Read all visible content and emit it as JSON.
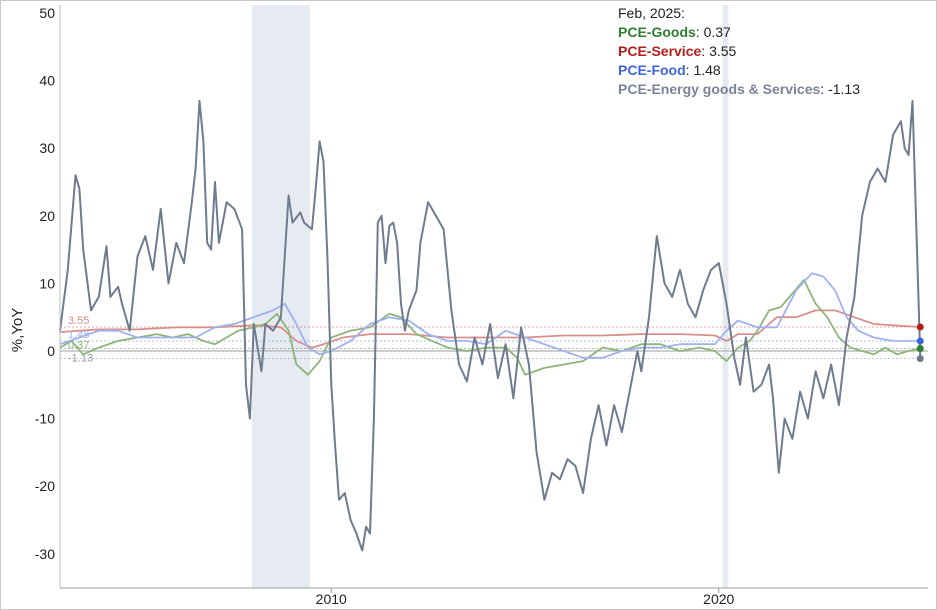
{
  "chart_data": {
    "type": "line",
    "ylabel": "%,YoY",
    "ylim": [
      -35,
      50
    ],
    "xlim": [
      2003.0,
      2025.4
    ],
    "y_ticks": [
      "50",
      "40",
      "30",
      "20",
      "10",
      "0",
      "-10",
      "-20",
      "-30"
    ],
    "y_tick_values": [
      50,
      40,
      30,
      20,
      10,
      0,
      -10,
      -20,
      -30
    ],
    "x_ticks": [
      "2010",
      "2020"
    ],
    "x_tick_values": [
      2010,
      2020
    ],
    "recessions": [
      [
        2007.95,
        2009.45
      ],
      [
        2020.1,
        2020.25
      ]
    ],
    "legend": {
      "date": "Feb, 2025:",
      "items": [
        {
          "name": "PCE-Goods",
          "sep": ": ",
          "value": "0.37",
          "color": "#2e7d32"
        },
        {
          "name": "PCE-Service",
          "sep": ": ",
          "value": "3.55",
          "color": "#b71c1c"
        },
        {
          "name": "PCE-Food",
          "sep": ": ",
          "value": "1.48",
          "color": "#3f64d8"
        },
        {
          "name": "PCE-Energy goods & Services",
          "sep": ": ",
          "value": "-1.13",
          "color": "#7a8599"
        }
      ]
    },
    "end_labels": [
      "3.55",
      "1.48",
      "0.37",
      "-1.13"
    ],
    "series": [
      {
        "name": "PCE-Goods",
        "color": "#8db57a",
        "dot": "#2e7d32",
        "end": 0.37,
        "points": [
          [
            2003.0,
            0.5
          ],
          [
            2003.3,
            1.5
          ],
          [
            2003.6,
            -0.5
          ],
          [
            2004.0,
            0.5
          ],
          [
            2004.5,
            1.5
          ],
          [
            2005.0,
            2.0
          ],
          [
            2005.5,
            2.5
          ],
          [
            2005.9,
            2.0
          ],
          [
            2006.3,
            2.5
          ],
          [
            2006.7,
            1.5
          ],
          [
            2007.0,
            1.0
          ],
          [
            2007.3,
            2.0
          ],
          [
            2007.6,
            3.0
          ],
          [
            2008.0,
            3.5
          ],
          [
            2008.3,
            4.0
          ],
          [
            2008.6,
            5.5
          ],
          [
            2008.9,
            3.0
          ],
          [
            2009.1,
            -2.0
          ],
          [
            2009.4,
            -3.5
          ],
          [
            2009.7,
            -1.5
          ],
          [
            2010.0,
            2.0
          ],
          [
            2010.5,
            3.0
          ],
          [
            2011.0,
            3.5
          ],
          [
            2011.5,
            5.5
          ],
          [
            2011.8,
            5.0
          ],
          [
            2012.2,
            2.5
          ],
          [
            2012.6,
            1.5
          ],
          [
            2013.0,
            0.5
          ],
          [
            2013.5,
            0.0
          ],
          [
            2014.0,
            0.5
          ],
          [
            2014.5,
            0.5
          ],
          [
            2014.8,
            -1.0
          ],
          [
            2015.0,
            -3.5
          ],
          [
            2015.5,
            -2.5
          ],
          [
            2016.0,
            -2.0
          ],
          [
            2016.5,
            -1.5
          ],
          [
            2017.0,
            0.5
          ],
          [
            2017.5,
            0.0
          ],
          [
            2018.0,
            1.0
          ],
          [
            2018.5,
            1.0
          ],
          [
            2019.0,
            0.0
          ],
          [
            2019.5,
            0.5
          ],
          [
            2019.9,
            0.0
          ],
          [
            2020.2,
            -1.5
          ],
          [
            2020.5,
            0.5
          ],
          [
            2020.8,
            1.5
          ],
          [
            2021.0,
            3.0
          ],
          [
            2021.3,
            6.0
          ],
          [
            2021.6,
            6.5
          ],
          [
            2021.9,
            8.5
          ],
          [
            2022.2,
            10.5
          ],
          [
            2022.5,
            7.0
          ],
          [
            2022.8,
            5.0
          ],
          [
            2023.1,
            2.0
          ],
          [
            2023.4,
            0.5
          ],
          [
            2023.7,
            0.0
          ],
          [
            2024.0,
            -0.5
          ],
          [
            2024.3,
            0.5
          ],
          [
            2024.6,
            -0.5
          ],
          [
            2024.9,
            0.0
          ],
          [
            2025.2,
            0.37
          ]
        ]
      },
      {
        "name": "PCE-Service",
        "color": "#d98f8a",
        "dot": "#b71c1c",
        "end": 3.55,
        "points": [
          [
            2003.0,
            2.8
          ],
          [
            2003.5,
            3.0
          ],
          [
            2004.0,
            3.2
          ],
          [
            2005.0,
            3.2
          ],
          [
            2006.0,
            3.5
          ],
          [
            2007.0,
            3.5
          ],
          [
            2008.0,
            3.8
          ],
          [
            2008.7,
            3.5
          ],
          [
            2009.1,
            1.5
          ],
          [
            2009.5,
            0.5
          ],
          [
            2009.8,
            1.0
          ],
          [
            2010.3,
            2.0
          ],
          [
            2011.0,
            2.5
          ],
          [
            2012.0,
            2.5
          ],
          [
            2013.0,
            2.0
          ],
          [
            2014.0,
            2.0
          ],
          [
            2015.0,
            2.0
          ],
          [
            2016.0,
            2.3
          ],
          [
            2017.0,
            2.3
          ],
          [
            2018.0,
            2.5
          ],
          [
            2019.0,
            2.5
          ],
          [
            2019.9,
            2.3
          ],
          [
            2020.2,
            1.5
          ],
          [
            2020.5,
            2.5
          ],
          [
            2021.0,
            2.5
          ],
          [
            2021.5,
            5.0
          ],
          [
            2022.0,
            5.0
          ],
          [
            2022.5,
            6.0
          ],
          [
            2023.0,
            6.0
          ],
          [
            2023.5,
            5.0
          ],
          [
            2024.0,
            4.0
          ],
          [
            2024.5,
            3.8
          ],
          [
            2025.2,
            3.55
          ]
        ]
      },
      {
        "name": "PCE-Food",
        "color": "#9fb2ef",
        "dot": "#3f64d8",
        "end": 1.48,
        "points": [
          [
            2003.0,
            1.0
          ],
          [
            2003.5,
            2.0
          ],
          [
            2004.0,
            3.0
          ],
          [
            2004.5,
            3.0
          ],
          [
            2005.0,
            2.0
          ],
          [
            2005.5,
            2.0
          ],
          [
            2006.0,
            2.0
          ],
          [
            2006.5,
            2.0
          ],
          [
            2007.0,
            3.5
          ],
          [
            2007.5,
            4.0
          ],
          [
            2008.0,
            5.0
          ],
          [
            2008.5,
            6.0
          ],
          [
            2008.8,
            7.0
          ],
          [
            2009.1,
            4.0
          ],
          [
            2009.4,
            0.5
          ],
          [
            2009.7,
            -0.5
          ],
          [
            2010.0,
            0.0
          ],
          [
            2010.5,
            1.5
          ],
          [
            2011.0,
            4.0
          ],
          [
            2011.5,
            5.0
          ],
          [
            2012.0,
            4.5
          ],
          [
            2012.5,
            2.5
          ],
          [
            2013.0,
            1.5
          ],
          [
            2013.5,
            1.5
          ],
          [
            2014.0,
            1.0
          ],
          [
            2014.5,
            3.0
          ],
          [
            2015.0,
            2.0
          ],
          [
            2015.5,
            1.0
          ],
          [
            2016.0,
            0.0
          ],
          [
            2016.5,
            -1.0
          ],
          [
            2017.0,
            -1.0
          ],
          [
            2017.5,
            0.0
          ],
          [
            2018.0,
            0.5
          ],
          [
            2018.5,
            0.5
          ],
          [
            2019.0,
            1.0
          ],
          [
            2019.5,
            1.0
          ],
          [
            2019.9,
            1.0
          ],
          [
            2020.2,
            3.0
          ],
          [
            2020.5,
            4.5
          ],
          [
            2021.0,
            3.5
          ],
          [
            2021.5,
            3.5
          ],
          [
            2022.0,
            9.0
          ],
          [
            2022.4,
            11.5
          ],
          [
            2022.7,
            11.0
          ],
          [
            2023.0,
            9.0
          ],
          [
            2023.3,
            5.0
          ],
          [
            2023.6,
            3.0
          ],
          [
            2024.0,
            2.0
          ],
          [
            2024.5,
            1.5
          ],
          [
            2025.2,
            1.48
          ]
        ]
      },
      {
        "name": "PCE-Energy goods & Services",
        "color": "#6f7c8f",
        "dot": "#6f7c8f",
        "end": -1.13,
        "points": [
          [
            2003.0,
            3.0
          ],
          [
            2003.2,
            12.0
          ],
          [
            2003.4,
            26.0
          ],
          [
            2003.5,
            24.0
          ],
          [
            2003.6,
            15.0
          ],
          [
            2003.8,
            6.0
          ],
          [
            2004.0,
            8.0
          ],
          [
            2004.2,
            15.5
          ],
          [
            2004.3,
            8.0
          ],
          [
            2004.5,
            9.5
          ],
          [
            2004.6,
            7.0
          ],
          [
            2004.8,
            3.0
          ],
          [
            2005.0,
            14.0
          ],
          [
            2005.2,
            17.0
          ],
          [
            2005.4,
            12.0
          ],
          [
            2005.6,
            21.0
          ],
          [
            2005.8,
            10.0
          ],
          [
            2006.0,
            16.0
          ],
          [
            2006.2,
            13.0
          ],
          [
            2006.4,
            22.0
          ],
          [
            2006.5,
            27.0
          ],
          [
            2006.6,
            37.0
          ],
          [
            2006.7,
            31.0
          ],
          [
            2006.8,
            16.0
          ],
          [
            2006.9,
            15.0
          ],
          [
            2007.0,
            25.0
          ],
          [
            2007.1,
            16.0
          ],
          [
            2007.3,
            22.0
          ],
          [
            2007.5,
            21.0
          ],
          [
            2007.7,
            18.0
          ],
          [
            2007.8,
            -5.0
          ],
          [
            2007.9,
            -10.0
          ],
          [
            2008.0,
            4.0
          ],
          [
            2008.2,
            -3.0
          ],
          [
            2008.3,
            4.0
          ],
          [
            2008.5,
            3.0
          ],
          [
            2008.7,
            5.0
          ],
          [
            2008.9,
            23.0
          ],
          [
            2009.0,
            19.0
          ],
          [
            2009.2,
            20.5
          ],
          [
            2009.3,
            19.0
          ],
          [
            2009.5,
            18.0
          ],
          [
            2009.6,
            24.0
          ],
          [
            2009.7,
            31.0
          ],
          [
            2009.8,
            28.0
          ],
          [
            2009.9,
            14.0
          ],
          [
            2010.0,
            -5.0
          ],
          [
            2010.1,
            -14.0
          ],
          [
            2010.2,
            -22.0
          ],
          [
            2010.35,
            -21.0
          ],
          [
            2010.5,
            -25.0
          ],
          [
            2010.65,
            -27.0
          ],
          [
            2010.8,
            -29.5
          ],
          [
            2010.9,
            -26.0
          ],
          [
            2011.0,
            -27.0
          ],
          [
            2011.1,
            -10.0
          ],
          [
            2011.2,
            19.0
          ],
          [
            2011.3,
            20.0
          ],
          [
            2011.4,
            13.0
          ],
          [
            2011.5,
            18.5
          ],
          [
            2011.6,
            19.0
          ],
          [
            2011.7,
            16.0
          ],
          [
            2011.8,
            7.0
          ],
          [
            2011.9,
            3.0
          ],
          [
            2012.0,
            6.0
          ],
          [
            2012.2,
            9.0
          ],
          [
            2012.3,
            16.0
          ],
          [
            2012.5,
            22.0
          ],
          [
            2012.7,
            20.0
          ],
          [
            2012.9,
            18.0
          ],
          [
            2013.1,
            6.0
          ],
          [
            2013.3,
            -2.0
          ],
          [
            2013.5,
            -4.5
          ],
          [
            2013.7,
            2.0
          ],
          [
            2013.9,
            -2.0
          ],
          [
            2014.1,
            4.0
          ],
          [
            2014.3,
            -4.0
          ],
          [
            2014.5,
            1.0
          ],
          [
            2014.7,
            -7.0
          ],
          [
            2014.9,
            3.5
          ],
          [
            2015.1,
            -2.0
          ],
          [
            2015.3,
            -15.0
          ],
          [
            2015.5,
            -22.0
          ],
          [
            2015.7,
            -18.0
          ],
          [
            2015.9,
            -19.0
          ],
          [
            2016.1,
            -16.0
          ],
          [
            2016.3,
            -17.0
          ],
          [
            2016.5,
            -21.0
          ],
          [
            2016.7,
            -13.0
          ],
          [
            2016.9,
            -8.0
          ],
          [
            2017.1,
            -14.0
          ],
          [
            2017.3,
            -8.0
          ],
          [
            2017.5,
            -12.0
          ],
          [
            2017.7,
            -6.0
          ],
          [
            2017.9,
            0.0
          ],
          [
            2018.0,
            -3.0
          ],
          [
            2018.2,
            5.0
          ],
          [
            2018.4,
            17.0
          ],
          [
            2018.6,
            10.0
          ],
          [
            2018.8,
            8.0
          ],
          [
            2019.0,
            12.0
          ],
          [
            2019.2,
            7.0
          ],
          [
            2019.4,
            5.0
          ],
          [
            2019.6,
            9.0
          ],
          [
            2019.8,
            12.0
          ],
          [
            2020.0,
            13.0
          ],
          [
            2020.2,
            7.0
          ],
          [
            2020.4,
            -1.0
          ],
          [
            2020.55,
            -5.0
          ],
          [
            2020.7,
            2.0
          ],
          [
            2020.9,
            -6.0
          ],
          [
            2021.1,
            -5.0
          ],
          [
            2021.3,
            -2.0
          ],
          [
            2021.4,
            -7.0
          ],
          [
            2021.55,
            -18.0
          ],
          [
            2021.7,
            -10.0
          ],
          [
            2021.9,
            -13.0
          ],
          [
            2022.1,
            -6.0
          ],
          [
            2022.3,
            -10.0
          ],
          [
            2022.5,
            -3.0
          ],
          [
            2022.7,
            -7.0
          ],
          [
            2022.9,
            -2.0
          ],
          [
            2023.1,
            -8.0
          ],
          [
            2023.3,
            2.0
          ],
          [
            2023.5,
            8.0
          ],
          [
            2023.7,
            20.0
          ],
          [
            2023.9,
            25.0
          ],
          [
            2024.1,
            27.0
          ],
          [
            2024.3,
            25.0
          ],
          [
            2024.5,
            32.0
          ],
          [
            2024.7,
            34.0
          ],
          [
            2024.8,
            30.0
          ],
          [
            2024.9,
            29.0
          ],
          [
            2025.0,
            37.0
          ],
          [
            2025.2,
            -1.13
          ]
        ]
      }
    ]
  }
}
